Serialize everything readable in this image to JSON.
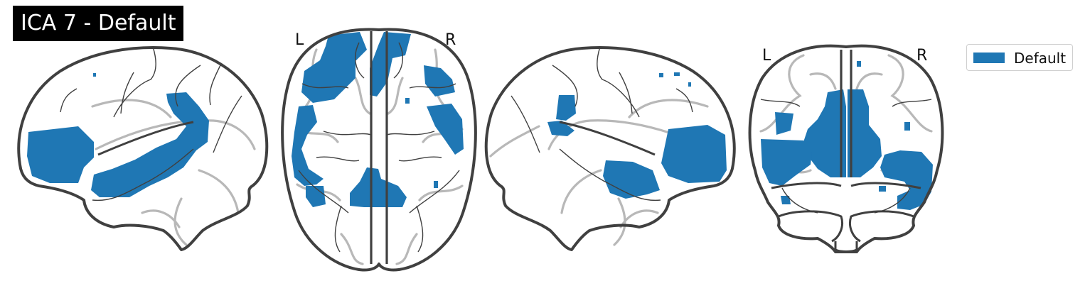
{
  "title": "ICA 7 - Default",
  "views": {
    "axial": {
      "left_label": "L",
      "right_label": "R"
    },
    "coronal": {
      "left_label": "L",
      "right_label": "R"
    }
  },
  "legend": {
    "label": "Default"
  },
  "colors": {
    "activation": "#1f77b4",
    "outline": "#3d3d3d",
    "sulci": "#b8b8b8",
    "title_bg": "#000000",
    "title_text": "#ffffff"
  }
}
